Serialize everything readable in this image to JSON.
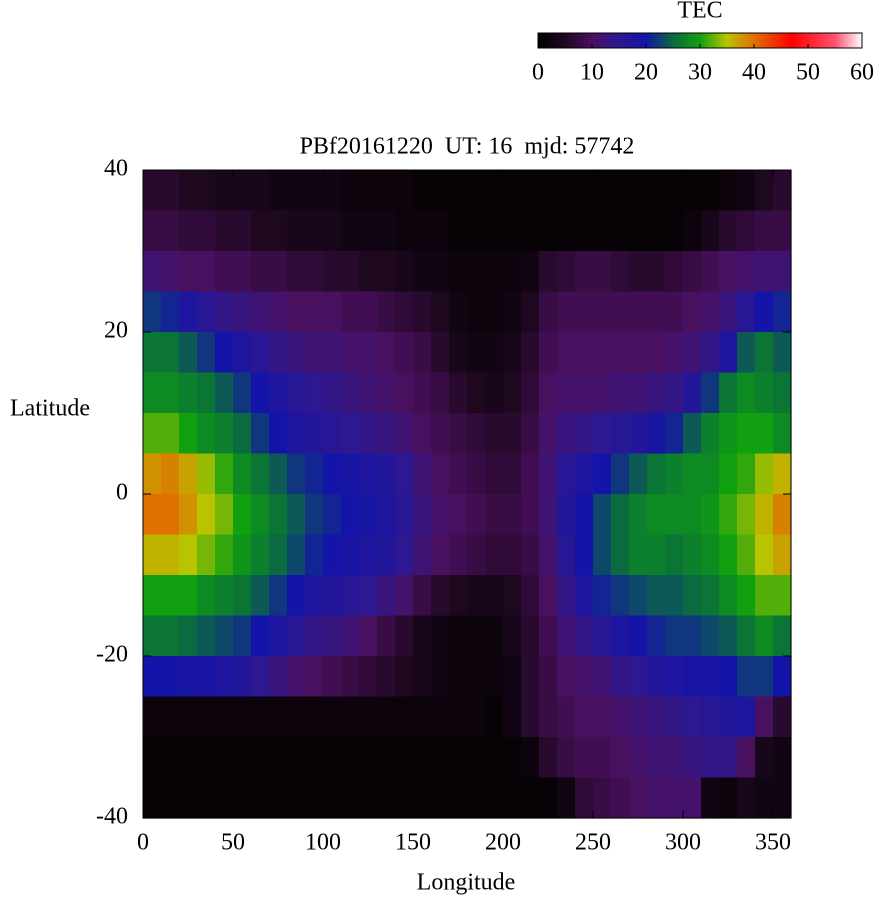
{
  "chart_data": {
    "type": "heatmap",
    "title": "PBf20161220  UT: 16  mjd: 57742",
    "x_label": "Longitude",
    "y_label": "Latitude",
    "x": [
      5,
      15,
      25,
      35,
      45,
      55,
      65,
      75,
      85,
      95,
      105,
      115,
      125,
      135,
      145,
      155,
      165,
      175,
      185,
      195,
      205,
      215,
      225,
      235,
      245,
      255,
      265,
      275,
      285,
      295,
      305,
      315,
      325,
      335,
      345,
      355
    ],
    "y": [
      37.5,
      32.5,
      27.5,
      22.5,
      17.5,
      12.5,
      7.5,
      2.5,
      -2.5,
      -7.5,
      -12.5,
      -17.5,
      -22.5,
      -27.5,
      -32.5,
      -37.5
    ],
    "xlim": [
      0,
      360
    ],
    "ylim": [
      -40,
      40
    ],
    "xticks": [
      0,
      50,
      100,
      150,
      200,
      250,
      300,
      350
    ],
    "yticks": [
      -40,
      -20,
      0,
      20,
      40
    ],
    "z": [
      [
        6,
        6,
        5,
        5,
        4,
        4,
        4,
        3,
        3,
        3,
        3,
        2,
        2,
        2,
        2,
        1,
        1,
        1,
        1,
        1,
        1,
        1,
        1,
        1,
        1,
        1,
        1,
        1,
        1,
        1,
        1,
        1,
        2,
        3,
        5,
        6
      ],
      [
        8,
        8,
        7,
        7,
        6,
        6,
        5,
        5,
        4,
        4,
        4,
        3,
        3,
        3,
        2,
        2,
        2,
        1,
        1,
        1,
        1,
        1,
        1,
        1,
        1,
        1,
        1,
        1,
        1,
        1,
        2,
        4,
        6,
        7,
        8,
        8
      ],
      [
        12,
        11,
        10,
        10,
        9,
        9,
        8,
        8,
        7,
        7,
        6,
        6,
        5,
        5,
        4,
        3,
        3,
        2,
        2,
        2,
        2,
        3,
        6,
        7,
        8,
        8,
        7,
        6,
        6,
        7,
        8,
        9,
        10,
        11,
        12,
        12
      ],
      [
        22,
        21,
        18,
        16,
        14,
        13,
        12,
        11,
        10,
        10,
        10,
        9,
        9,
        8,
        7,
        6,
        5,
        3,
        2,
        2,
        3,
        5,
        8,
        9,
        9,
        9,
        9,
        9,
        9,
        9,
        10,
        11,
        13,
        16,
        20,
        21
      ],
      [
        26,
        26,
        24,
        22,
        20,
        18,
        16,
        14,
        13,
        12,
        12,
        11,
        11,
        10,
        9,
        8,
        6,
        4,
        3,
        3,
        4,
        6,
        9,
        10,
        10,
        10,
        10,
        10,
        10,
        11,
        12,
        14,
        18,
        24,
        26,
        24
      ],
      [
        28,
        28,
        27,
        26,
        24,
        22,
        20,
        18,
        16,
        15,
        14,
        13,
        12,
        11,
        10,
        9,
        8,
        6,
        5,
        4,
        5,
        7,
        10,
        11,
        11,
        11,
        12,
        12,
        13,
        14,
        17,
        22,
        26,
        28,
        27,
        26
      ],
      [
        32,
        32,
        30,
        28,
        27,
        25,
        22,
        20,
        18,
        17,
        16,
        15,
        14,
        13,
        12,
        10,
        9,
        8,
        7,
        6,
        6,
        8,
        11,
        13,
        14,
        15,
        16,
        17,
        19,
        21,
        24,
        27,
        29,
        30,
        30,
        28
      ],
      [
        38,
        39,
        37,
        34,
        31,
        28,
        26,
        24,
        22,
        21,
        20,
        19,
        18,
        17,
        15,
        12,
        10,
        9,
        8,
        7,
        7,
        9,
        12,
        16,
        18,
        20,
        22,
        24,
        26,
        27,
        28,
        28,
        30,
        31,
        34,
        36
      ],
      [
        40,
        40,
        38,
        35,
        33,
        30,
        28,
        26,
        24,
        22,
        21,
        20,
        19,
        18,
        16,
        13,
        11,
        10,
        9,
        8,
        8,
        9,
        12,
        17,
        20,
        23,
        25,
        27,
        28,
        28,
        28,
        29,
        31,
        33,
        36,
        39
      ],
      [
        36,
        36,
        35,
        33,
        31,
        29,
        27,
        25,
        23,
        21,
        20,
        19,
        18,
        17,
        15,
        12,
        10,
        9,
        8,
        7,
        7,
        8,
        11,
        16,
        20,
        23,
        25,
        27,
        27,
        26,
        27,
        28,
        30,
        32,
        35,
        37
      ],
      [
        30,
        30,
        30,
        28,
        27,
        26,
        24,
        22,
        20,
        18,
        17,
        16,
        15,
        13,
        11,
        8,
        6,
        5,
        4,
        4,
        5,
        7,
        10,
        14,
        18,
        21,
        22,
        23,
        24,
        24,
        25,
        26,
        28,
        30,
        32,
        32
      ],
      [
        26,
        26,
        25,
        24,
        23,
        22,
        20,
        18,
        16,
        14,
        13,
        12,
        10,
        8,
        6,
        4,
        3,
        2,
        2,
        2,
        4,
        6,
        9,
        12,
        14,
        16,
        18,
        20,
        21,
        22,
        22,
        23,
        24,
        26,
        28,
        26
      ],
      [
        20,
        20,
        19,
        19,
        18,
        17,
        15,
        13,
        11,
        10,
        9,
        8,
        7,
        6,
        5,
        4,
        3,
        2,
        2,
        2,
        3,
        6,
        8,
        10,
        11,
        12,
        14,
        15,
        17,
        18,
        19,
        19,
        20,
        22,
        22,
        20
      ],
      [
        2,
        2,
        2,
        2,
        2,
        2,
        2,
        2,
        2,
        2,
        2,
        2,
        2,
        2,
        2,
        2,
        2,
        2,
        2,
        1,
        3,
        6,
        8,
        9,
        10,
        10,
        11,
        12,
        13,
        14,
        15,
        16,
        17,
        18,
        10,
        6
      ],
      [
        1,
        1,
        1,
        1,
        1,
        1,
        1,
        1,
        1,
        1,
        1,
        1,
        1,
        1,
        1,
        1,
        1,
        1,
        1,
        1,
        1,
        2,
        6,
        8,
        9,
        9,
        10,
        11,
        12,
        12,
        13,
        14,
        14,
        10,
        4,
        3
      ],
      [
        1,
        1,
        1,
        1,
        1,
        1,
        1,
        1,
        1,
        1,
        1,
        1,
        1,
        1,
        1,
        1,
        1,
        1,
        1,
        1,
        1,
        1,
        1,
        3,
        7,
        8,
        9,
        10,
        11,
        11,
        11,
        3,
        2,
        4,
        3,
        3
      ]
    ],
    "colorbar": {
      "title": "TEC",
      "zlim": [
        0,
        60
      ],
      "ticks": [
        0,
        10,
        20,
        30,
        40,
        50,
        60
      ]
    },
    "colorscale": [
      [
        0,
        "#000000"
      ],
      [
        5,
        "#1e0820"
      ],
      [
        10,
        "#4a1060"
      ],
      [
        15,
        "#2c1890"
      ],
      [
        20,
        "#1414a8"
      ],
      [
        25,
        "#0a6a40"
      ],
      [
        30,
        "#10a010"
      ],
      [
        35,
        "#b8c400"
      ],
      [
        40,
        "#e07000"
      ],
      [
        47,
        "#ff0000"
      ],
      [
        55,
        "#ff5070"
      ],
      [
        60,
        "#ffffff"
      ]
    ]
  }
}
